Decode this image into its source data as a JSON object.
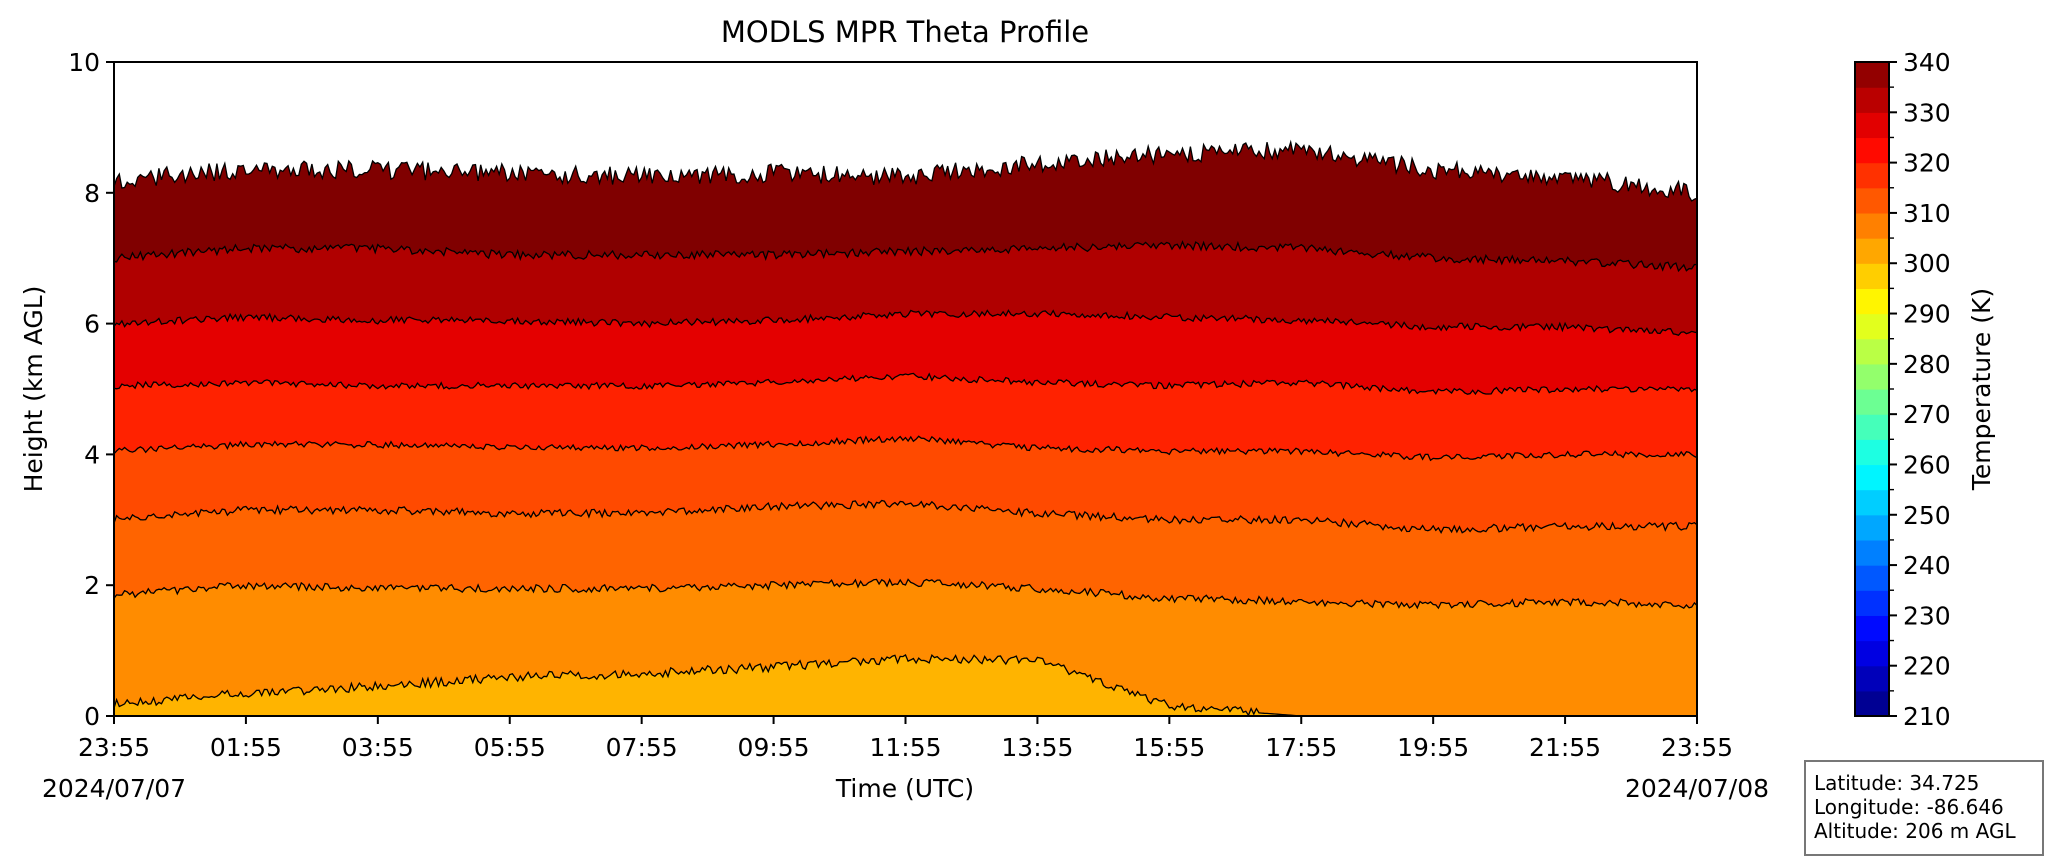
{
  "chart_data": {
    "type": "filled-contour",
    "title": "MODLS MPR Theta Profile",
    "xlabel": "Time (UTC)",
    "ylabel": "Height (km AGL)",
    "x_ticks": [
      "23:55",
      "01:55",
      "03:55",
      "05:55",
      "07:55",
      "09:55",
      "11:55",
      "13:55",
      "15:55",
      "17:55",
      "19:55",
      "21:55",
      "23:55"
    ],
    "start_date": "2024/07/07",
    "end_date": "2024/07/08",
    "ylim": [
      0,
      10
    ],
    "y_ticks": [
      0,
      2,
      4,
      6,
      8,
      10
    ],
    "grid": false,
    "colorbar": {
      "label": "Temperature (K)",
      "range": [
        210,
        340
      ],
      "ticks": [
        210,
        220,
        230,
        240,
        250,
        260,
        270,
        280,
        290,
        300,
        310,
        320,
        330,
        340
      ],
      "level_step": 5,
      "colormap": "jet"
    },
    "contour_levels_km": {
      "description_x_hours": [
        0,
        2,
        4,
        6,
        8,
        10,
        12,
        14,
        16,
        18,
        20,
        22,
        24
      ],
      "305": [
        0.18,
        0.35,
        0.45,
        0.6,
        0.65,
        0.75,
        0.88,
        0.85,
        0.15,
        0.0,
        0.0,
        0.0,
        0.0
      ],
      "310": [
        1.85,
        2.0,
        1.95,
        1.95,
        1.95,
        2.0,
        2.05,
        1.95,
        1.8,
        1.75,
        1.7,
        1.75,
        1.7
      ],
      "315": [
        3.0,
        3.15,
        3.15,
        3.1,
        3.1,
        3.2,
        3.25,
        3.1,
        3.0,
        3.0,
        2.85,
        2.9,
        2.9
      ],
      "320": [
        4.05,
        4.15,
        4.15,
        4.1,
        4.1,
        4.15,
        4.25,
        4.1,
        4.05,
        4.05,
        3.95,
        4.0,
        4.0
      ],
      "325": [
        5.05,
        5.1,
        5.05,
        5.05,
        5.05,
        5.1,
        5.2,
        5.1,
        5.05,
        5.1,
        4.95,
        5.0,
        5.0
      ],
      "330": [
        6.0,
        6.1,
        6.05,
        6.05,
        6.0,
        6.05,
        6.15,
        6.15,
        6.1,
        6.05,
        5.95,
        5.95,
        5.85
      ],
      "335": [
        7.0,
        7.15,
        7.15,
        7.05,
        7.05,
        7.05,
        7.1,
        7.15,
        7.2,
        7.15,
        7.0,
        6.95,
        6.85
      ],
      "top": [
        8.2,
        8.35,
        8.35,
        8.3,
        8.25,
        8.3,
        8.25,
        8.45,
        8.6,
        8.65,
        8.35,
        8.25,
        8.0
      ]
    },
    "band_colors": {
      "300": "#ffb400",
      "305": "#ff8c00",
      "310": "#ff6400",
      "315": "#ff4a00",
      "320": "#ff2200",
      "325": "#e40000",
      "330": "#b00000",
      "335": "#800000"
    }
  },
  "info_box": {
    "latitude": "Latitude: 34.725",
    "longitude": "Longitude: -86.646",
    "altitude": "Altitude: 206 m AGL"
  }
}
